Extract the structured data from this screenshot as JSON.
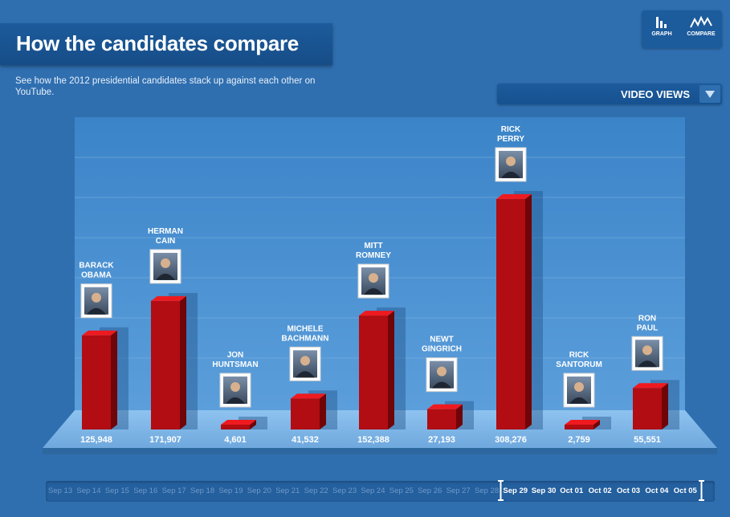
{
  "header": {
    "title": "How the candidates compare",
    "subtitle": "See how the 2012 presidential candidates stack up against each other on YouTube."
  },
  "view_toggle": {
    "graph_label": "GRAPH",
    "compare_label": "COMPARE"
  },
  "metric_dropdown": {
    "selected": "VIDEO VIEWS"
  },
  "colors": {
    "background": "#2f6fb0",
    "bar": "#b10d12",
    "bar_top": "#ee1a1f",
    "floor": "#7db6e8"
  },
  "chart_data": {
    "type": "bar",
    "title": "",
    "xlabel": "",
    "ylabel": "",
    "categories": [
      "BARACK OBAMA",
      "HERMAN CAIN",
      "JON HUNTSMAN",
      "MICHELE BACHMANN",
      "MITT ROMNEY",
      "NEWT GINGRICH",
      "RICK PERRY",
      "RICK SANTORUM",
      "RON PAUL"
    ],
    "name_lines": [
      [
        "BARACK",
        "OBAMA"
      ],
      [
        "HERMAN",
        "CAIN"
      ],
      [
        "JON",
        "HUNTSMAN"
      ],
      [
        "MICHELE",
        "BACHMANN"
      ],
      [
        "MITT",
        "ROMNEY"
      ],
      [
        "NEWT",
        "GINGRICH"
      ],
      [
        "RICK",
        "PERRY"
      ],
      [
        "RICK",
        "SANTORUM"
      ],
      [
        "RON",
        "PAUL"
      ]
    ],
    "values": [
      125948,
      171907,
      4601,
      41532,
      152388,
      27193,
      308276,
      2759,
      55551
    ],
    "value_labels": [
      "125,948",
      "171,907",
      "4,601",
      "41,532",
      "152,388",
      "27,193",
      "308,276",
      "2,759",
      "55,551"
    ],
    "ylim": [
      0,
      320000
    ],
    "grid": true,
    "legend": "none"
  },
  "timeline": {
    "dates": [
      "Sep 13",
      "Sep 14",
      "Sep 15",
      "Sep 16",
      "Sep 17",
      "Sep 18",
      "Sep 19",
      "Sep 20",
      "Sep 21",
      "Sep 22",
      "Sep 23",
      "Sep 24",
      "Sep 25",
      "Sep 26",
      "Sep 27",
      "Sep 28",
      "Sep 29",
      "Sep 30",
      "Oct 01",
      "Oct 02",
      "Oct 03",
      "Oct 04",
      "Oct 05"
    ],
    "selected_range": [
      "Sep 29",
      "Oct 05"
    ]
  }
}
